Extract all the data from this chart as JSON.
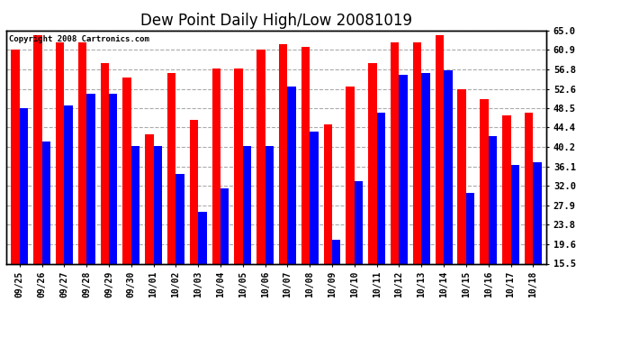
{
  "title": "Dew Point Daily High/Low 20081019",
  "copyright": "Copyright 2008 Cartronics.com",
  "dates": [
    "09/25",
    "09/26",
    "09/27",
    "09/28",
    "09/29",
    "09/30",
    "10/01",
    "10/02",
    "10/03",
    "10/04",
    "10/05",
    "10/06",
    "10/07",
    "10/08",
    "10/09",
    "10/10",
    "10/11",
    "10/12",
    "10/13",
    "10/14",
    "10/15",
    "10/16",
    "10/17",
    "10/18"
  ],
  "highs": [
    61.0,
    64.0,
    62.5,
    62.5,
    58.0,
    55.0,
    43.0,
    56.0,
    46.0,
    57.0,
    57.0,
    61.0,
    62.0,
    61.5,
    45.0,
    53.0,
    58.0,
    62.5,
    62.5,
    64.0,
    52.5,
    50.5,
    47.0,
    47.5
  ],
  "lows": [
    48.5,
    41.5,
    49.0,
    51.5,
    51.5,
    40.5,
    40.5,
    34.5,
    26.5,
    31.5,
    40.5,
    40.5,
    53.0,
    43.5,
    20.5,
    33.0,
    47.5,
    55.5,
    56.0,
    56.5,
    30.5,
    42.5,
    36.5,
    37.0
  ],
  "ymin": 15.5,
  "ymax": 65.0,
  "yticks": [
    15.5,
    19.6,
    23.8,
    27.9,
    32.0,
    36.1,
    40.2,
    44.4,
    48.5,
    52.6,
    56.8,
    60.9,
    65.0
  ],
  "high_color": "#ff0000",
  "low_color": "#0000ff",
  "bg_color": "#ffffff",
  "grid_color": "#aaaaaa",
  "bar_width": 0.38,
  "title_fontsize": 12
}
